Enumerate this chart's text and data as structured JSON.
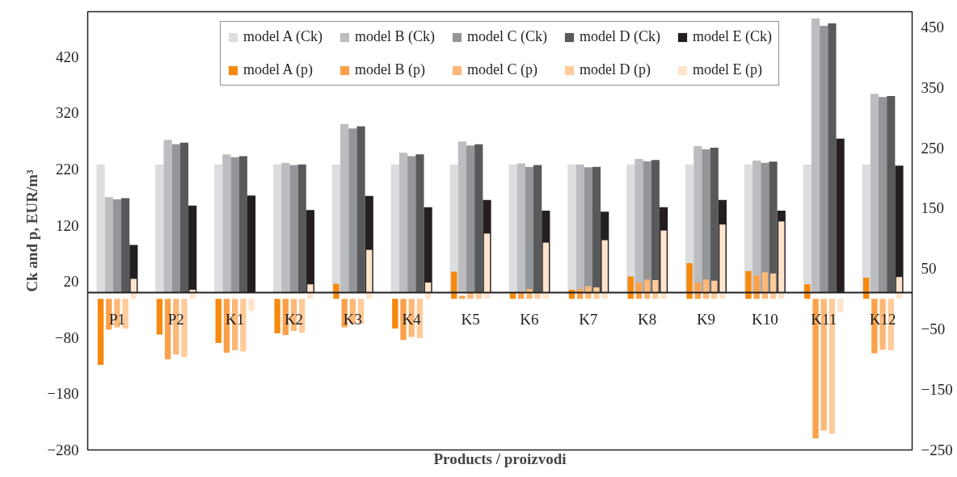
{
  "chart_data": {
    "type": "bar",
    "xlabel": "Products / proizvodi",
    "ylabel": "Ck and p, EUR/m³",
    "categories": [
      "P1",
      "P2",
      "K1",
      "K2",
      "K3",
      "K4",
      "K5",
      "K6",
      "K7",
      "K8",
      "K9",
      "K10",
      "K11",
      "K12"
    ],
    "series": [
      {
        "name": "model A (Ck)",
        "color": "#dcdddf",
        "values": [
          228,
          228,
          228,
          228,
          228,
          228,
          228,
          228,
          228,
          228,
          228,
          228,
          228,
          228
        ]
      },
      {
        "name": "model B (Ck)",
        "color": "#bcbdc1",
        "values": [
          170,
          272,
          246,
          231,
          300,
          249,
          269,
          230,
          228,
          238,
          261,
          235,
          488,
          354
        ]
      },
      {
        "name": "model C (Ck)",
        "color": "#939598",
        "values": [
          166,
          264,
          241,
          227,
          292,
          243,
          262,
          224,
          223,
          234,
          255,
          231,
          475,
          348
        ]
      },
      {
        "name": "model D (Ck)",
        "color": "#58595b",
        "values": [
          168,
          267,
          243,
          228,
          296,
          246,
          264,
          227,
          224,
          236,
          258,
          233,
          479,
          350
        ]
      },
      {
        "name": "model E (Ck)",
        "color": "#231f20",
        "values": [
          85,
          155,
          173,
          147,
          172,
          152,
          165,
          146,
          144,
          152,
          165,
          146,
          274,
          226
        ]
      },
      {
        "name": "model A (p)",
        "color": "#f7890c",
        "axis": "y2",
        "values": [
          -109,
          -59,
          -73,
          -57,
          25,
          -49,
          45,
          11,
          15,
          37,
          59,
          46,
          24,
          35
        ]
      },
      {
        "name": "model B (p)",
        "color": "#fba14b",
        "axis": "y2",
        "values": [
          -51,
          -100,
          -89,
          -60,
          -47,
          -68,
          5,
          11,
          16,
          27,
          27,
          39,
          -231,
          -90
        ]
      },
      {
        "name": "model C (p)",
        "color": "#fdb877",
        "axis": "y2",
        "values": [
          -47,
          -92,
          -85,
          -53,
          -41,
          -63,
          11,
          16,
          21,
          32,
          32,
          44,
          -218,
          -84
        ]
      },
      {
        "name": "model D (p)",
        "color": "#fecb9a",
        "axis": "y2",
        "values": [
          -49,
          -96,
          -87,
          -56,
          -41,
          -65,
          11,
          11,
          19,
          31,
          30,
          42,
          -223,
          -85
        ]
      },
      {
        "name": "model E (p)",
        "color": "#fee4cc",
        "axis": "y2",
        "values": [
          33,
          15,
          -20,
          24,
          81,
          27,
          108,
          93,
          97,
          113,
          123,
          128,
          -21,
          36
        ]
      }
    ],
    "ylim": [
      -280,
      500
    ],
    "yticks": [
      -280,
      -180,
      -80,
      20,
      120,
      220,
      320,
      420
    ],
    "y2lim": [
      -250,
      475
    ],
    "y2ticks": [
      -250,
      -150,
      -50,
      50,
      150,
      250,
      350,
      450
    ],
    "legend": "top",
    "grid": false
  }
}
